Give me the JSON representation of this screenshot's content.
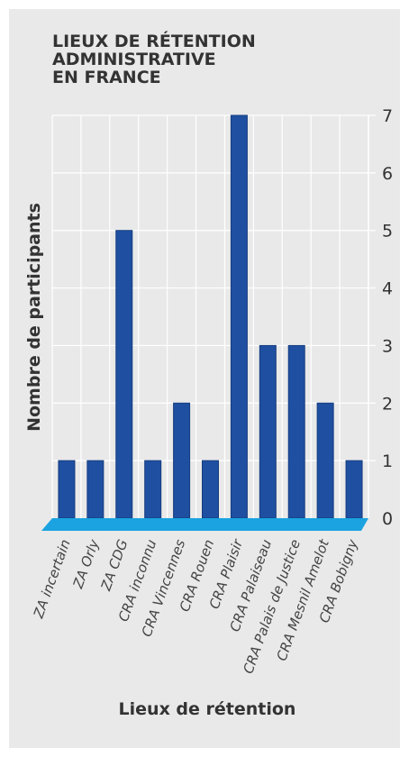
{
  "chart_data": {
    "type": "bar",
    "title": "LIEUX DE RÉTENTION ADMINISTRATIVE EN FRANCE",
    "title_lines": [
      "LIEUX DE RÉTENTION",
      "ADMINISTRATIVE",
      "EN FRANCE"
    ],
    "xlabel": "Lieux de rétention",
    "ylabel": "Nombre de participants",
    "categories": [
      "ZA incertain",
      "ZA Orly",
      "ZA CDG",
      "CRA inconnu",
      "CRA Vincennes",
      "CRA Rouen",
      "CRA Plaisir",
      "CRA Palaiseau",
      "CRA Palais de Justice",
      "CRA Mesnil Amelot",
      "CRA Bobigny"
    ],
    "values": [
      1,
      1,
      5,
      1,
      2,
      1,
      7,
      3,
      3,
      2,
      1
    ],
    "ylim": [
      0,
      7
    ],
    "yticks": [
      0,
      1,
      2,
      3,
      4,
      5,
      6,
      7
    ],
    "grid": true,
    "colors": {
      "bar": "#1f4fa0",
      "bar_edge": "#163d80",
      "base": "#1aa3e0",
      "grid": "#ffffff",
      "panel": "#e9e9e9"
    }
  }
}
